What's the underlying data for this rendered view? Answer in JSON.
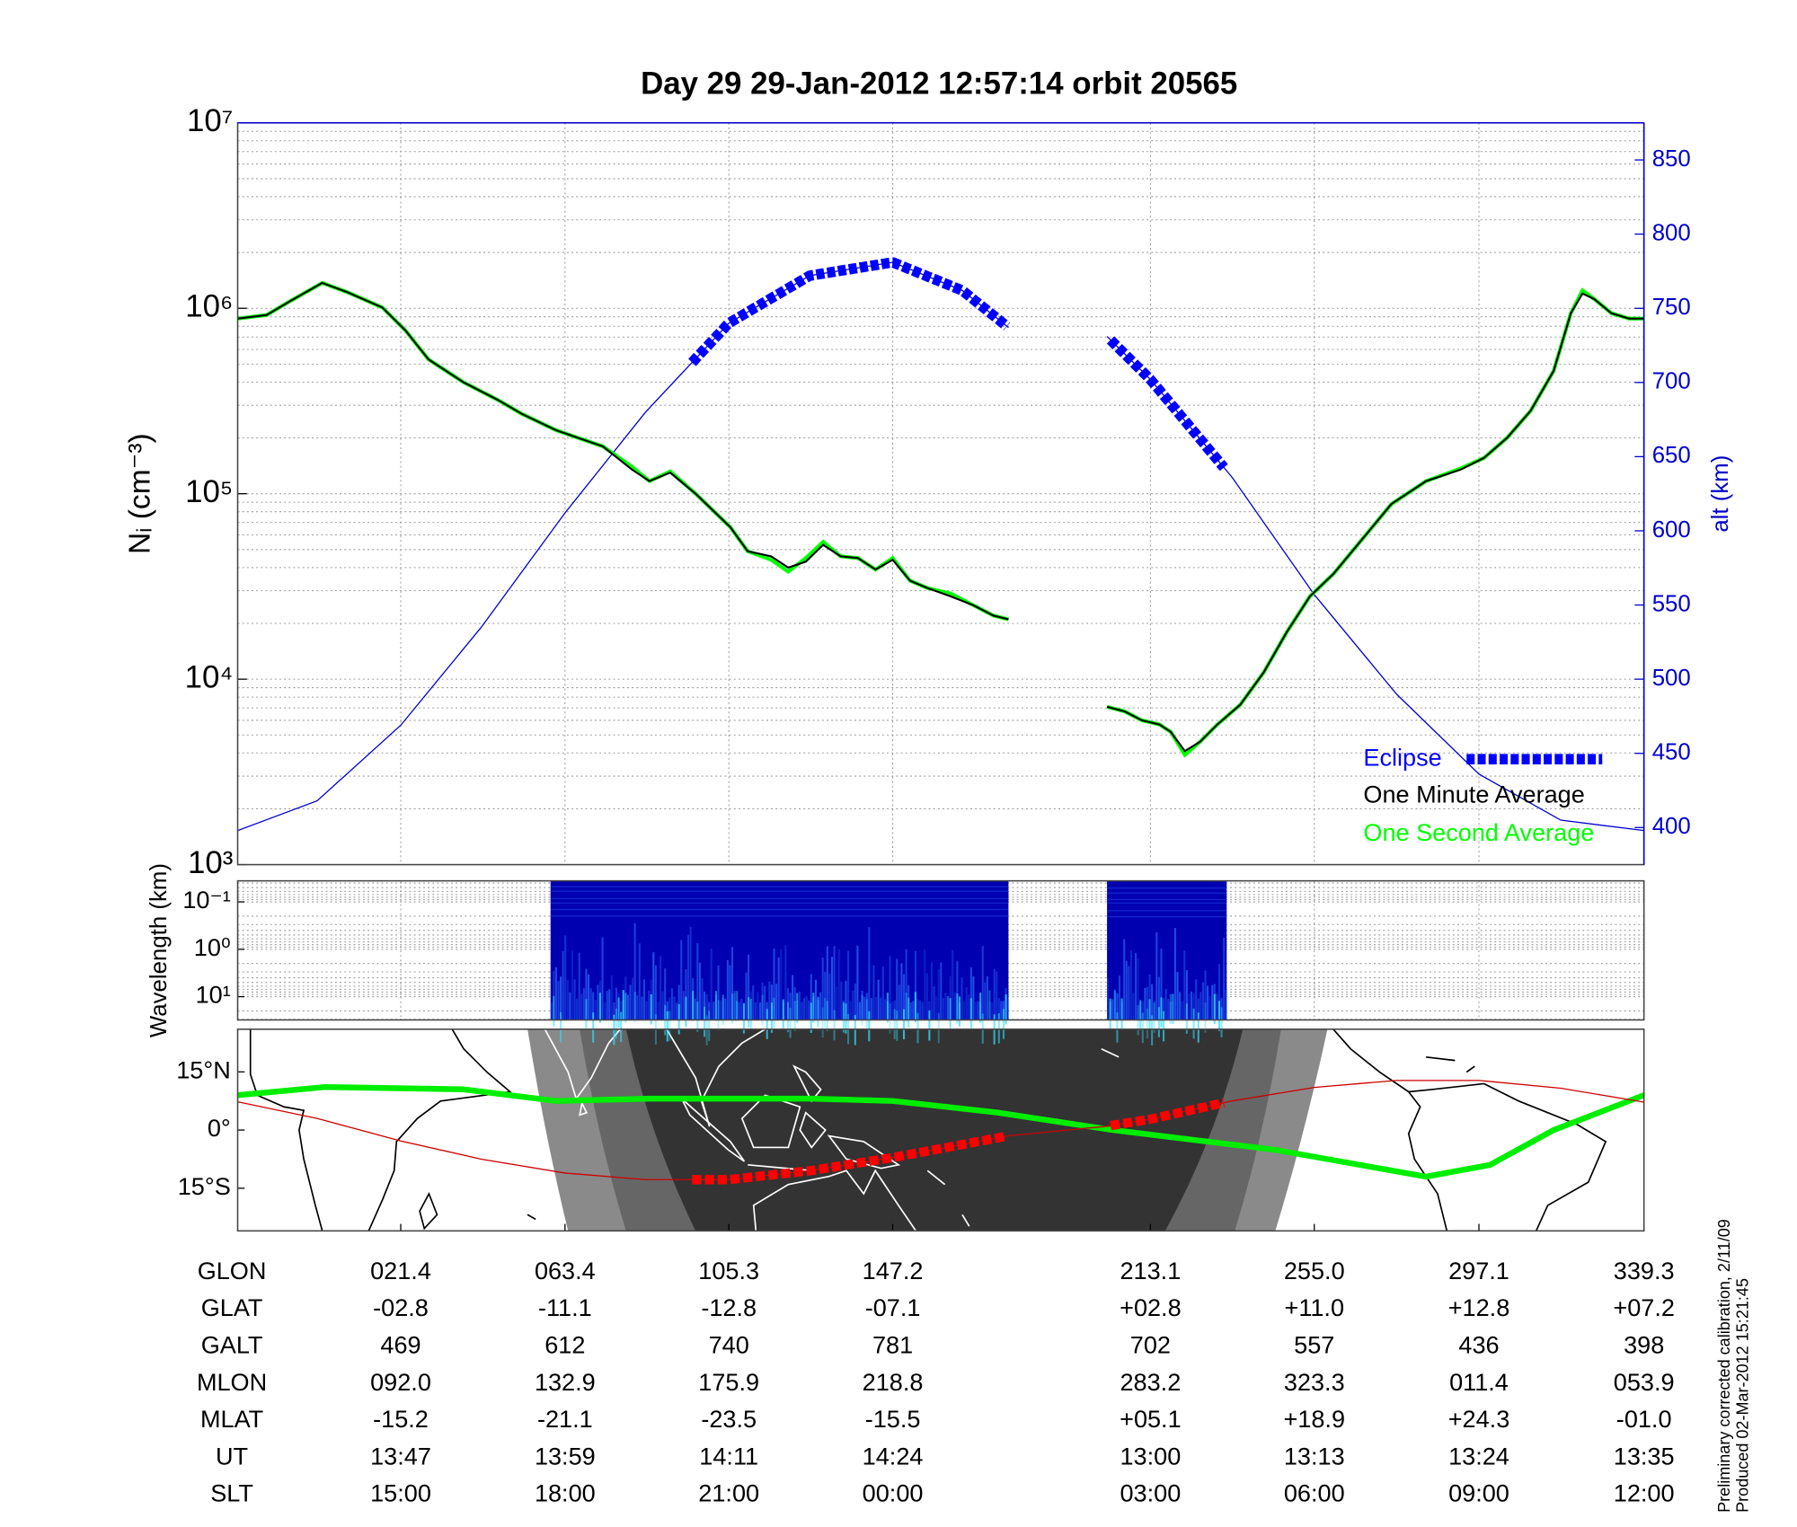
{
  "chart_data": [
    {
      "type": "line",
      "title": "Day 29  29-Jan-2012 12:57:14   orbit 20565",
      "ylabel": "Nᵢ (cm⁻³)",
      "y2label": "alt (km)",
      "log_y": true,
      "ylim": [
        1000,
        10000000
      ],
      "yticks": [
        {
          "value": 1000,
          "label": "10³"
        },
        {
          "value": 10000,
          "label": "10⁴"
        },
        {
          "value": 100000,
          "label": "10⁵"
        },
        {
          "value": 1000000,
          "label": "10⁶"
        },
        {
          "value": 10000000,
          "label": "10⁷"
        }
      ],
      "y2lim": [
        375,
        875
      ],
      "y2ticks": [
        400,
        450,
        500,
        550,
        600,
        650,
        700,
        750,
        800,
        850
      ],
      "xlim": [
        -20.3,
        339.3
      ],
      "xticks": [
        21.4,
        63.4,
        105.3,
        147.2,
        213.1,
        255.0,
        297.1,
        339.3
      ],
      "grid": true,
      "legend": "lower right",
      "eclipse": {
        "name": "Eclipse",
        "color": "#0000ff",
        "spans": [
          [
            95.9,
            176.8
          ],
          [
            202.9,
            232.3
          ]
        ]
      },
      "series": [
        {
          "name": "One Minute Average",
          "color": "#000000",
          "x": [
            -20.3,
            -12.9,
            -7.0,
            1.3,
            7.8,
            16.7,
            22.6,
            28.5,
            37.4,
            46.3,
            52.3,
            61.1,
            73.1,
            80.5,
            85.0,
            90.3,
            96.8,
            105.7,
            110.1,
            116.1,
            120.5,
            125.0,
            129.4,
            133.9,
            138.3,
            142.8,
            147.2,
            151.6,
            156.1,
            162.0,
            167.9,
            173.0,
            176.8,
            null,
            202.0,
            206.5,
            210.9,
            215.4,
            218.3,
            221.9,
            225.8,
            230.2,
            236.1,
            242.1,
            248.0,
            253.9,
            259.9,
            267.3,
            274.7,
            283.6,
            292.5,
            298.4,
            304.3,
            310.3,
            316.2,
            320.6,
            323.6,
            326.6,
            331.0,
            335.5,
            339.3
          ],
          "values": [
            880000,
            920000,
            1090000,
            1370000,
            1220000,
            1010000,
            760000,
            530000,
            400000,
            320000,
            270000,
            220000,
            180000,
            135000,
            117000,
            130000,
            100000,
            66000,
            49000,
            46000,
            40000,
            43000,
            53000,
            46000,
            45000,
            39000,
            44000,
            34000,
            31000,
            28000,
            25000,
            22000,
            21000,
            null,
            7100,
            6700,
            6000,
            5700,
            5200,
            4100,
            4600,
            5700,
            7300,
            10900,
            18000,
            28000,
            37000,
            57000,
            88000,
            117000,
            135000,
            156000,
            200000,
            280000,
            460000,
            940000,
            1200000,
            1120000,
            940000,
            880000,
            880000
          ]
        },
        {
          "name": "One Second Average",
          "color": "#00ff00",
          "x": [
            -20.3,
            -12.9,
            -7.0,
            1.3,
            7.8,
            16.7,
            22.6,
            28.5,
            37.4,
            46.3,
            52.3,
            61.1,
            73.1,
            80.5,
            85.0,
            90.3,
            96.8,
            105.7,
            110.1,
            116.1,
            120.5,
            125.0,
            129.4,
            133.9,
            138.3,
            142.8,
            147.2,
            151.6,
            156.1,
            162.0,
            167.9,
            173.0,
            176.8,
            null,
            202.0,
            206.5,
            210.9,
            215.4,
            218.3,
            221.9,
            225.8,
            230.2,
            236.1,
            242.1,
            248.0,
            253.9,
            259.9,
            267.3,
            274.7,
            283.6,
            292.5,
            298.4,
            304.3,
            310.3,
            316.2,
            320.6,
            323.6,
            326.6,
            331.0,
            335.5,
            339.3
          ],
          "values": [
            880000,
            920000,
            1090000,
            1370000,
            1220000,
            1010000,
            760000,
            530000,
            400000,
            320000,
            270000,
            220000,
            180000,
            140000,
            117000,
            132000,
            100000,
            66000,
            49000,
            44000,
            38000,
            45000,
            55000,
            46000,
            45000,
            39000,
            45000,
            34000,
            31000,
            29000,
            25000,
            22000,
            21000,
            null,
            7100,
            6700,
            6000,
            5700,
            5200,
            3900,
            4600,
            5700,
            7300,
            10900,
            18000,
            28000,
            37000,
            57000,
            88000,
            117000,
            137000,
            156000,
            200000,
            280000,
            460000,
            940000,
            1250000,
            1120000,
            940000,
            880000,
            880000
          ]
        },
        {
          "color": "#0000cc",
          "axis": "y2",
          "x": [
            -20.3,
            0,
            21.4,
            42,
            63.4,
            84,
            105.3,
            126,
            147.2,
            165,
            176.8,
            null,
            202.0,
            213.1,
            234,
            255.0,
            276,
            297.1,
            318,
            339.3
          ],
          "values": [
            398,
            418,
            469,
            535,
            612,
            680,
            740,
            772,
            781,
            762,
            737,
            null,
            731,
            702,
            636,
            557,
            490,
            436,
            405,
            398
          ]
        }
      ]
    },
    {
      "type": "spectrogram",
      "ylabel": "Wavelength (km)",
      "log_y": true,
      "invert_y": true,
      "ylim": [
        0.036,
        31
      ],
      "yticks": [
        {
          "value": 0.1,
          "label": "10⁻¹"
        },
        {
          "value": 1,
          "label": "10⁰"
        },
        {
          "value": 10,
          "label": "10¹"
        }
      ],
      "xlim": [
        -20.3,
        339.3
      ],
      "spans": [
        [
          59.7,
          176.8
        ],
        [
          202.0,
          232.6
        ]
      ],
      "color": "#0000b0"
    },
    {
      "type": "map",
      "ylim": [
        -26,
        26
      ],
      "yticks": [
        {
          "value": 15,
          "label": "15°N"
        },
        {
          "value": 0,
          "label": "0°"
        },
        {
          "value": -15,
          "label": "15°S"
        }
      ],
      "xlim": [
        -20.3,
        339.3
      ],
      "series": [
        {
          "color": "#cc0000",
          "x": [
            -20.3,
            0,
            21.4,
            42,
            63.4,
            84,
            105.3,
            126,
            147.2,
            176.8,
            202,
            213.1,
            234,
            255.0,
            276,
            297.1,
            318,
            339.3
          ],
          "values": [
            7.3,
            3.0,
            -2.8,
            -7.5,
            -11.1,
            -12.8,
            -12.8,
            -10.5,
            -7.1,
            -1.5,
            1.0,
            2.8,
            7.5,
            11.0,
            12.8,
            12.8,
            10.8,
            7.2
          ]
        },
        {
          "color": "#00ee00",
          "x": [
            -20.3,
            2.0,
            37.4,
            61.1,
            85.0,
            126.4,
            147.2,
            173.9,
            203.5,
            245.0,
            283.6,
            299.9,
            316.2,
            339.3
          ],
          "values": [
            9.0,
            11.1,
            10.5,
            7.5,
            8.1,
            8.1,
            7.5,
            4.5,
            0,
            -5.1,
            -12,
            -9,
            0,
            9.0
          ]
        }
      ]
    }
  ],
  "table": {
    "rows": [
      [
        "GLON",
        "021.4",
        "063.4",
        "105.3",
        "147.2",
        "213.1",
        "255.0",
        "297.1",
        "339.3"
      ],
      [
        "GLAT",
        "-02.8",
        "-11.1",
        "-12.8",
        "-07.1",
        "+02.8",
        "+11.0",
        "+12.8",
        "+07.2"
      ],
      [
        "GALT",
        "469",
        "612",
        "740",
        "781",
        "702",
        "557",
        "436",
        "398"
      ],
      [
        "MLON",
        "092.0",
        "132.9",
        "175.9",
        "218.8",
        "283.2",
        "323.3",
        "011.4",
        "053.9"
      ],
      [
        "MLAT",
        "-15.2",
        "-21.1",
        "-23.5",
        "-15.5",
        "+05.1",
        "+18.9",
        "+24.3",
        "-01.0"
      ],
      [
        "UT",
        "13:47",
        "13:59",
        "14:11",
        "14:24",
        "13:00",
        "13:13",
        "13:24",
        "13:35"
      ],
      [
        "SLT",
        "15:00",
        "18:00",
        "21:00",
        "00:00",
        "03:00",
        "06:00",
        "09:00",
        "12:00"
      ]
    ]
  },
  "notes": [
    "Preliminary corrected calibration, 2/11/09",
    "Produced 02-Mar-2012 15:21:45"
  ]
}
